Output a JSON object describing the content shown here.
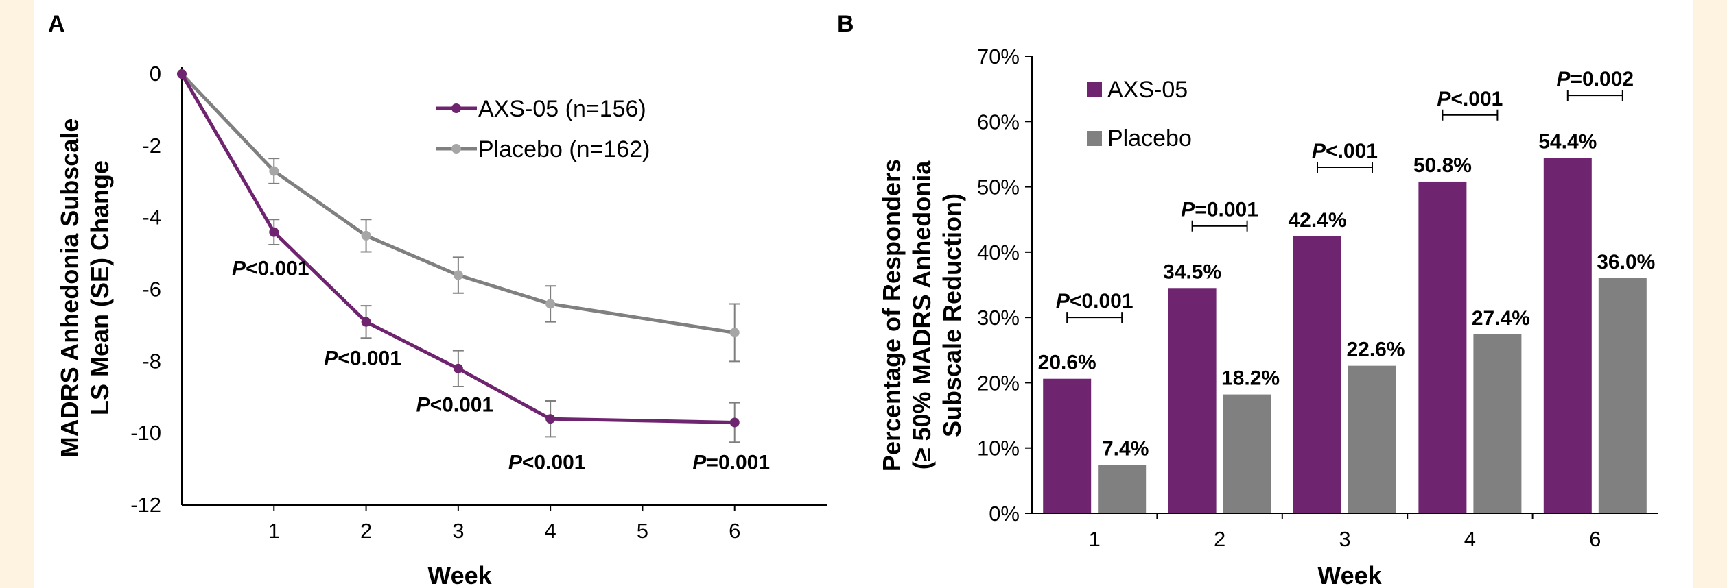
{
  "colors": {
    "axs05": "#6f2470",
    "placebo": "#808080",
    "placebo_marker": "#a6a6a6",
    "error_bar": "#7f7f7f"
  },
  "chart_data": [
    {
      "panel": "A",
      "type": "line",
      "xlabel": "Week",
      "ylabel_line1": "MADRS Anhedonia Subscale",
      "ylabel_line2": "LS Mean (SE) Change",
      "xlim": [
        0,
        7
      ],
      "ylim": [
        -12,
        0
      ],
      "xticks": [
        1,
        2,
        3,
        4,
        5,
        6
      ],
      "yticks": [
        0,
        -2,
        -4,
        -6,
        -8,
        -10,
        -12
      ],
      "legend": "top-right",
      "series": [
        {
          "name": "AXS-05 (n=156)",
          "x": [
            0,
            1,
            2,
            3,
            4,
            6
          ],
          "y": [
            0,
            -4.4,
            -6.9,
            -8.2,
            -9.6,
            -9.7
          ],
          "se": [
            0,
            0.35,
            0.45,
            0.5,
            0.5,
            0.55
          ]
        },
        {
          "name": "Placebo (n=162)",
          "x": [
            0,
            1,
            2,
            3,
            4,
            6
          ],
          "y": [
            0,
            -2.7,
            -4.5,
            -5.6,
            -6.4,
            -7.2
          ],
          "se": [
            0,
            0.35,
            0.45,
            0.5,
            0.5,
            0.8
          ]
        }
      ],
      "annotations": [
        {
          "x": 1,
          "y": -5.6,
          "prefix": "P",
          "text": "<0.001"
        },
        {
          "x": 2,
          "y": -8.1,
          "prefix": "P",
          "text": "<0.001"
        },
        {
          "x": 3,
          "y": -9.4,
          "prefix": "P",
          "text": "<0.001"
        },
        {
          "x": 4,
          "y": -11.0,
          "prefix": "P",
          "text": "<0.001"
        },
        {
          "x": 6,
          "y": -11.0,
          "prefix": "P",
          "text": "=0.001"
        }
      ]
    },
    {
      "panel": "B",
      "type": "bar",
      "xlabel": "Week",
      "ylabel_line1": "Percentage of Responders",
      "ylabel_line2": "(≥ 50% MADRS Anhedonia",
      "ylabel_line3": "Subscale  Reduction)",
      "ylim": [
        0,
        70
      ],
      "yticks": [
        "0%",
        "10%",
        "20%",
        "30%",
        "40%",
        "50%",
        "60%",
        "70%"
      ],
      "legend": "top-left",
      "categories": [
        "1",
        "2",
        "3",
        "4",
        "6"
      ],
      "series": [
        {
          "name": "AXS-05",
          "values": [
            20.6,
            34.5,
            42.4,
            50.8,
            54.4
          ],
          "labels": [
            "20.6%",
            "34.5%",
            "42.4%",
            "50.8%",
            "54.4%"
          ]
        },
        {
          "name": "Placebo",
          "values": [
            7.4,
            18.2,
            22.6,
            27.4,
            36.0
          ],
          "labels": [
            "7.4%",
            "18.2%",
            "22.6%",
            "27.4%",
            "36.0%"
          ]
        }
      ],
      "pvalues": [
        {
          "prefix": "P",
          "text": "<0.001",
          "y": 30
        },
        {
          "prefix": "P",
          "text": "=0.001",
          "y": 44
        },
        {
          "prefix": "P",
          "text": "<.001",
          "y": 53
        },
        {
          "prefix": "P",
          "text": "<.001",
          "y": 61
        },
        {
          "prefix": "P",
          "text": "=0.002",
          "y": 64
        }
      ]
    }
  ]
}
